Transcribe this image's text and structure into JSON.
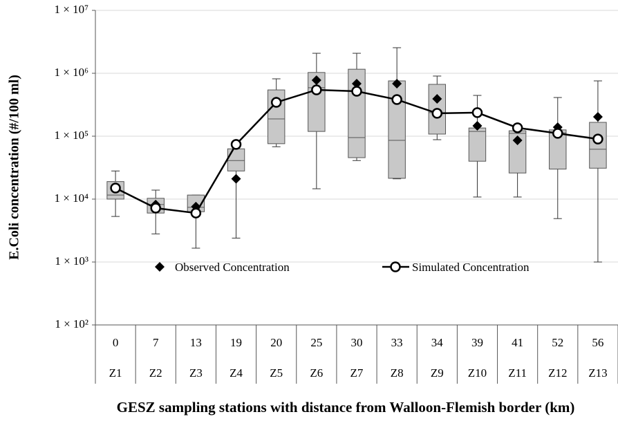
{
  "chart_data": {
    "type": "box",
    "y_label": "E.Coli concentration (#/100 ml)",
    "x_label": "GESZ sampling stations with distance from Walloon-Flemish border (km)",
    "distances": [
      0,
      7,
      13,
      19,
      20,
      25,
      30,
      33,
      34,
      39,
      41,
      52,
      56
    ],
    "categories": [
      "Z1",
      "Z2",
      "Z3",
      "Z4",
      "Z5",
      "Z6",
      "Z7",
      "Z8",
      "Z9",
      "Z10",
      "Z11",
      "Z12",
      "Z13"
    ],
    "boxes": {
      "color": "#c8c8c8",
      "whisker_low": [
        5300,
        2800,
        1660,
        2400,
        68000,
        14600,
        41000,
        21000,
        88000,
        10800,
        10800,
        4900,
        1000
      ],
      "q1": [
        10000,
        6000,
        6300,
        28000,
        76000,
        119000,
        45600,
        21400,
        108000,
        40000,
        26000,
        30000,
        31000
      ],
      "median": [
        11600,
        8200,
        7400,
        41000,
        188000,
        590000,
        95000,
        86000,
        237000,
        119000,
        111000,
        113000,
        62000
      ],
      "q3": [
        19000,
        10300,
        11600,
        63000,
        544000,
        1030000,
        1160000,
        757000,
        667000,
        135000,
        122000,
        126000,
        166000
      ],
      "whisker_high": [
        28000,
        13900,
        11600,
        63000,
        817000,
        2080000,
        2080000,
        2550000,
        904000,
        445000,
        122000,
        412000,
        757000
      ]
    },
    "series": [
      {
        "name": "Observed Concentration",
        "color": "#000000",
        "marker": "diamond",
        "values": [
          15000,
          8200,
          7600,
          21000,
          354000,
          776000,
          684000,
          684000,
          392000,
          146000,
          86000,
          139000,
          203000
        ]
      },
      {
        "name": "Simulated Concentration",
        "color": "#000000",
        "marker": "open-circle-line",
        "values": [
          15000,
          7200,
          6000,
          74000,
          345000,
          545000,
          518000,
          382000,
          231000,
          237000,
          136000,
          111000,
          90000
        ]
      }
    ],
    "log_scale": true,
    "ylim": [
      100,
      10000000
    ],
    "yticks": [
      {
        "value": 100,
        "label": "1 × 10²"
      },
      {
        "value": 1000,
        "label": "1 × 10³"
      },
      {
        "value": 10000,
        "label": "1 × 10⁴"
      },
      {
        "value": 100000,
        "label": "1 × 10⁵"
      },
      {
        "value": 1000000,
        "label": "1 × 10⁶"
      },
      {
        "value": 10000000,
        "label": "1 × 10⁷"
      }
    ],
    "grid": true
  }
}
